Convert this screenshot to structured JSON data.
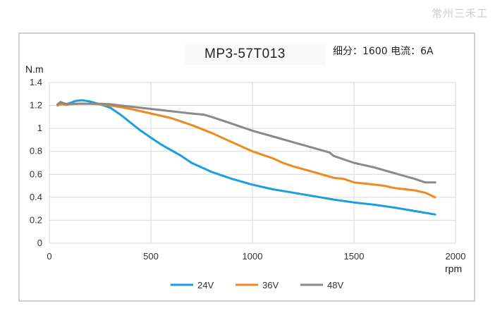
{
  "watermark": "常州三禾工",
  "chart_data": {
    "type": "line",
    "title": "MP3-57T013",
    "subtitle": "细分：1600 电流：6A",
    "xlabel": "rpm",
    "ylabel": "N.m",
    "xlim": [
      0,
      2000
    ],
    "ylim": [
      0,
      1.4
    ],
    "xticks": [
      "0",
      "500",
      "1000",
      "1500",
      "2000"
    ],
    "yticks": [
      "0",
      "0.2",
      "0.4",
      "0.6",
      "0.8",
      "1",
      "1.2",
      "1.4"
    ],
    "grid": "vertical-and-horizontal",
    "legend_position": "bottom",
    "series": [
      {
        "name": "24V",
        "color": "#1a9ee0",
        "x": [
          40,
          60,
          80,
          100,
          130,
          160,
          200,
          250,
          300,
          350,
          400,
          450,
          500,
          550,
          600,
          650,
          700,
          750,
          800,
          900,
          1000,
          1100,
          1200,
          1300,
          1400,
          1500,
          1600,
          1700,
          1800,
          1900
        ],
        "y": [
          1.2,
          1.22,
          1.21,
          1.22,
          1.24,
          1.245,
          1.235,
          1.21,
          1.18,
          1.12,
          1.05,
          0.98,
          0.92,
          0.86,
          0.81,
          0.76,
          0.7,
          0.66,
          0.62,
          0.56,
          0.51,
          0.47,
          0.44,
          0.41,
          0.38,
          0.355,
          0.335,
          0.31,
          0.28,
          0.25
        ]
      },
      {
        "name": "36V",
        "color": "#ee8a1f",
        "x": [
          40,
          60,
          80,
          100,
          150,
          200,
          250,
          300,
          350,
          400,
          500,
          600,
          650,
          700,
          800,
          900,
          1000,
          1100,
          1150,
          1200,
          1300,
          1400,
          1450,
          1500,
          1600,
          1650,
          1700,
          1800,
          1850,
          1900
        ],
        "y": [
          1.2,
          1.21,
          1.205,
          1.21,
          1.215,
          1.215,
          1.21,
          1.2,
          1.185,
          1.17,
          1.13,
          1.09,
          1.06,
          1.03,
          0.96,
          0.88,
          0.8,
          0.74,
          0.7,
          0.67,
          0.62,
          0.57,
          0.56,
          0.53,
          0.51,
          0.5,
          0.48,
          0.46,
          0.44,
          0.4
        ]
      },
      {
        "name": "48V",
        "color": "#8a8a8a",
        "x": [
          40,
          55,
          70,
          90,
          120,
          150,
          200,
          250,
          300,
          350,
          400,
          500,
          600,
          700,
          760,
          800,
          900,
          1000,
          1100,
          1200,
          1300,
          1380,
          1400,
          1500,
          1600,
          1700,
          1800,
          1850,
          1900
        ],
        "y": [
          1.21,
          1.23,
          1.22,
          1.21,
          1.215,
          1.215,
          1.215,
          1.215,
          1.21,
          1.2,
          1.19,
          1.17,
          1.15,
          1.13,
          1.12,
          1.1,
          1.04,
          0.98,
          0.93,
          0.88,
          0.83,
          0.79,
          0.76,
          0.7,
          0.66,
          0.61,
          0.56,
          0.53,
          0.53
        ]
      }
    ]
  }
}
